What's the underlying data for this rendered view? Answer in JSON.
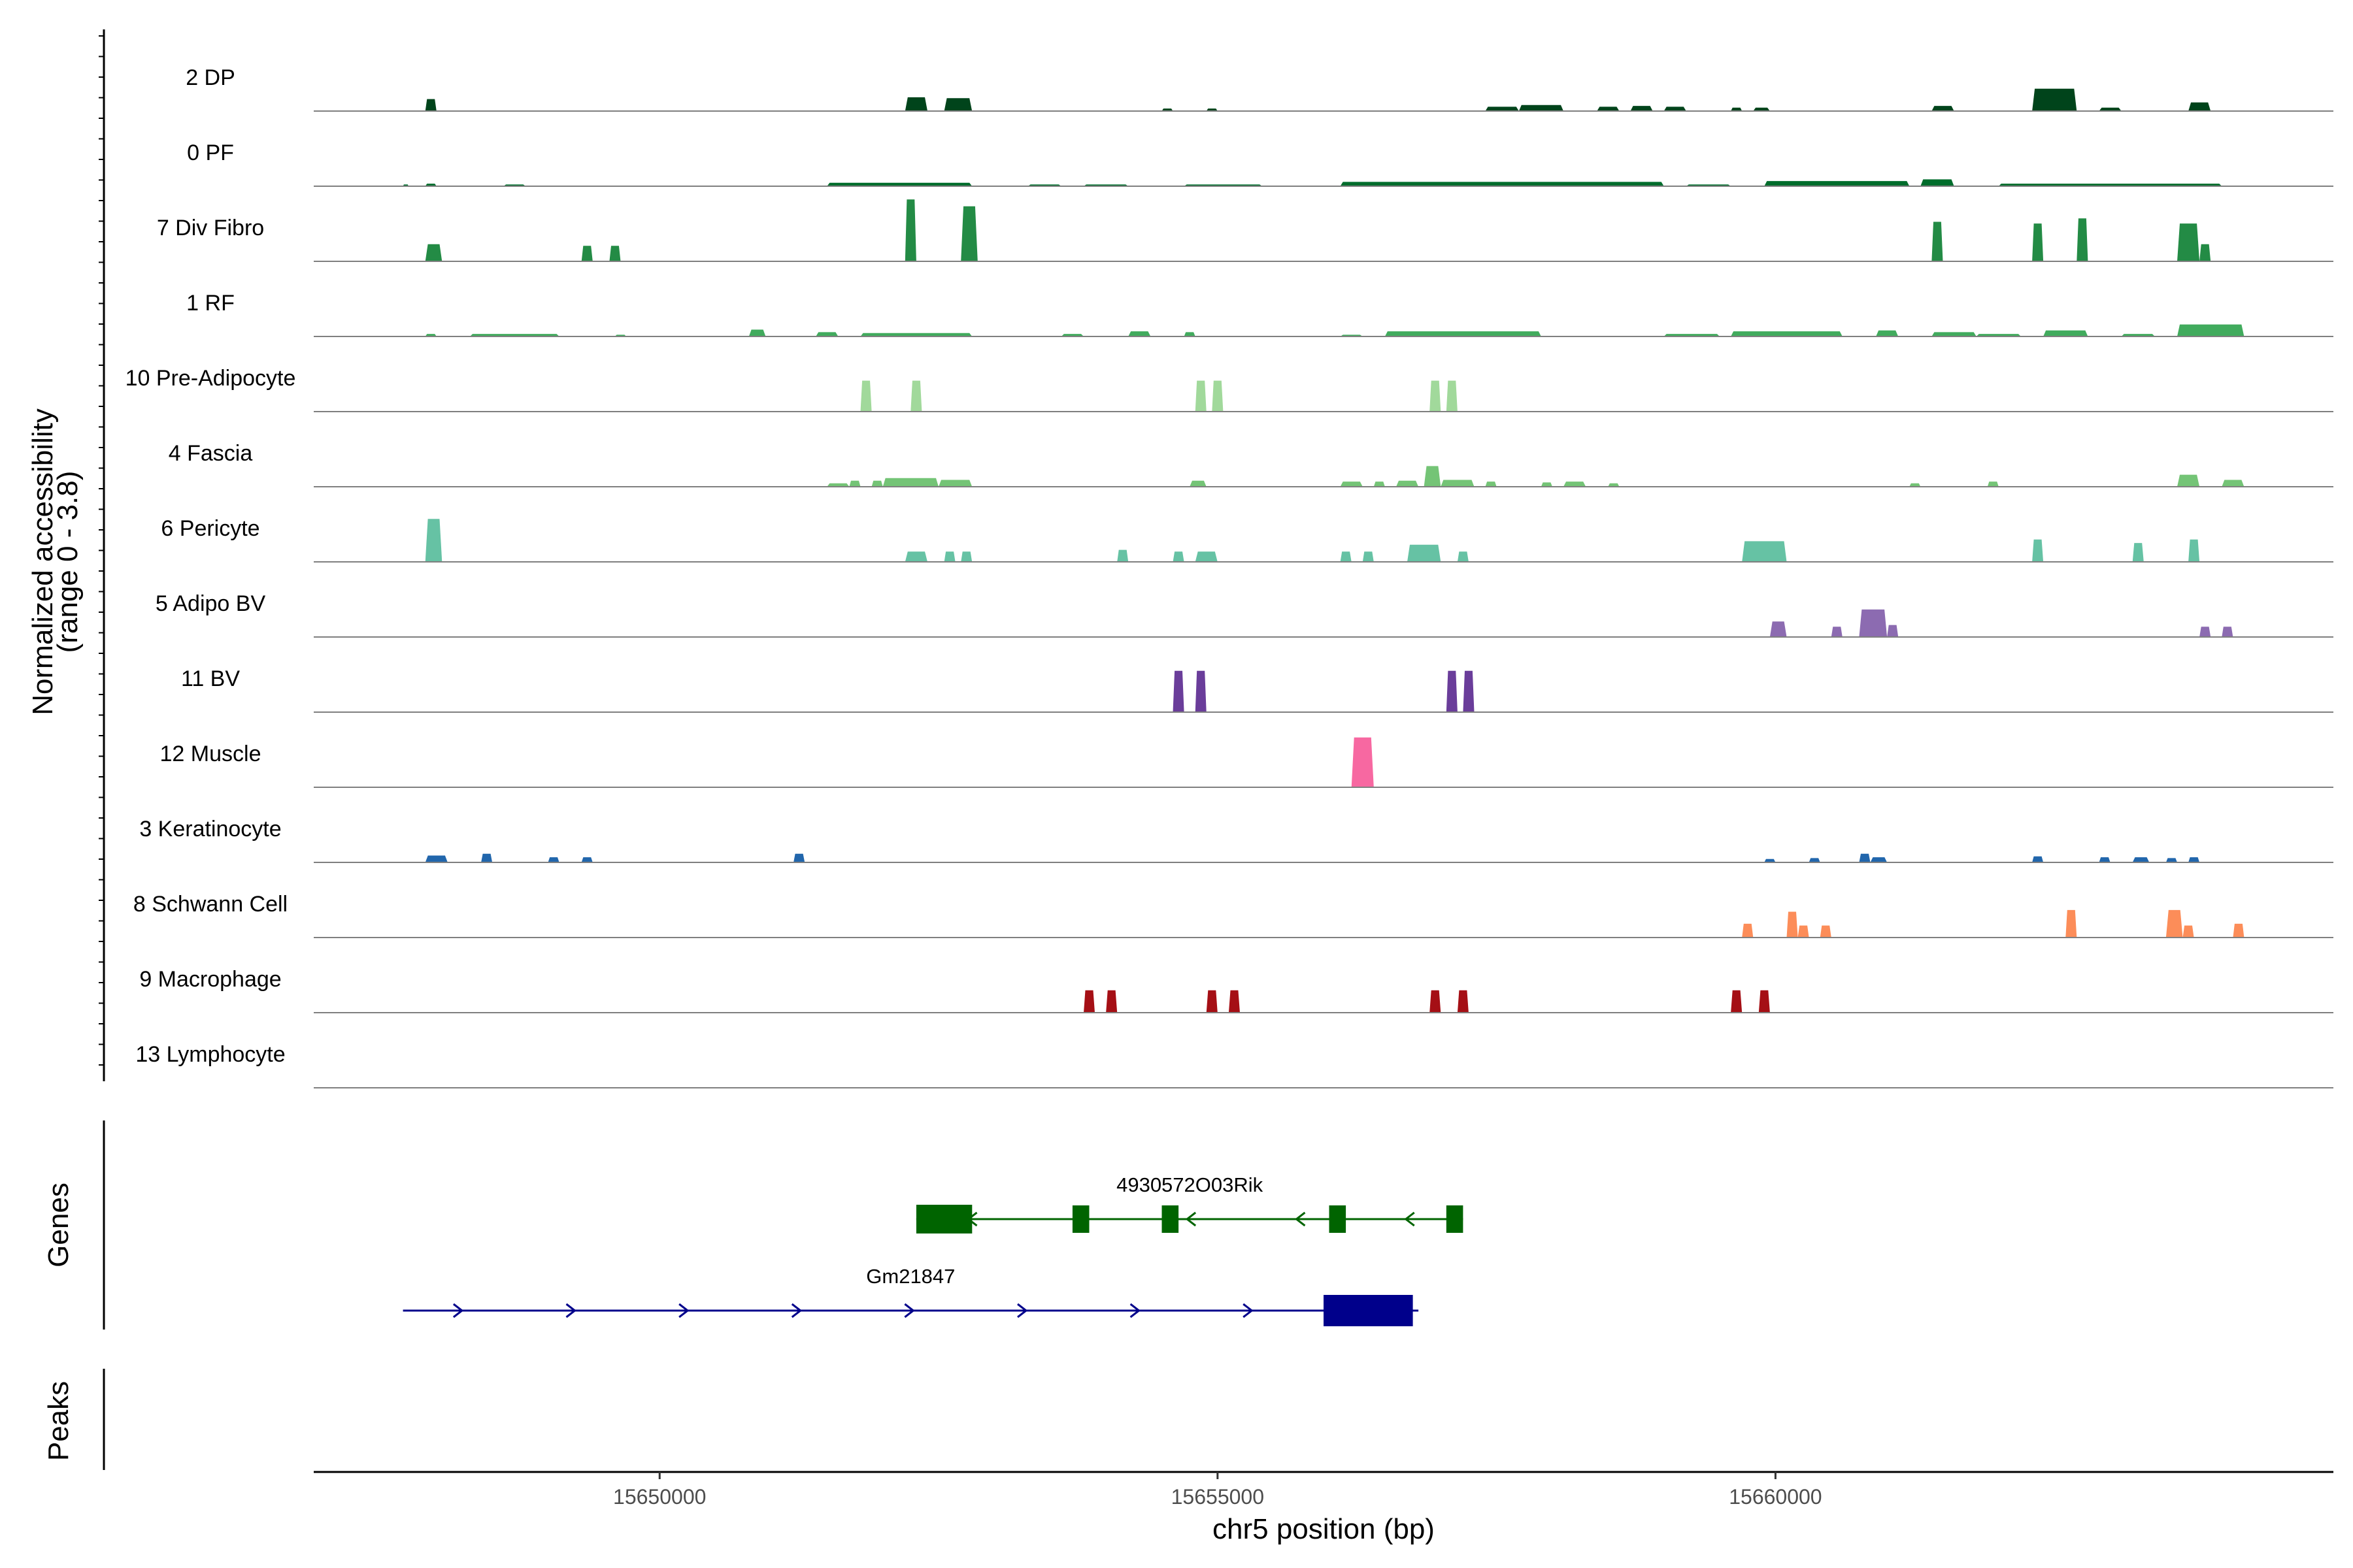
{
  "chart_data": {
    "type": "area",
    "title": "",
    "xlabel": "chr5 position (bp)",
    "ylabel": "Normalized accessibility (range 0 - 3.8)",
    "xlim": [
      15646900,
      15665000
    ],
    "ylim": [
      0,
      3.8
    ],
    "x_ticks": [
      15650000,
      15655000,
      15660000
    ],
    "x_tick_labels": [
      "15650000",
      "15655000",
      "15660000"
    ],
    "panel_labels": {
      "genes": "Genes",
      "peaks": "Peaks"
    },
    "series": [
      {
        "name": "2 DP",
        "color": "#00441b",
        "peaks": [
          [
            15647900,
            15648000,
            0.7
          ],
          [
            15652200,
            15652400,
            0.8
          ],
          [
            15652550,
            15652800,
            0.75
          ],
          [
            15654500,
            15654600,
            0.15
          ],
          [
            15654900,
            15655000,
            0.15
          ],
          [
            15657400,
            15657700,
            0.25
          ],
          [
            15657700,
            15658100,
            0.35
          ],
          [
            15658400,
            15658600,
            0.25
          ],
          [
            15658700,
            15658900,
            0.3
          ],
          [
            15659000,
            15659200,
            0.25
          ],
          [
            15659600,
            15659700,
            0.2
          ],
          [
            15659800,
            15659950,
            0.2
          ],
          [
            15661400,
            15661600,
            0.3
          ],
          [
            15662300,
            15662700,
            1.3
          ],
          [
            15662900,
            15663100,
            0.2
          ],
          [
            15663700,
            15663900,
            0.5
          ]
        ]
      },
      {
        "name": "0 PF",
        "color": "#006d2c",
        "peaks": [
          [
            15647700,
            15647750,
            0.1
          ],
          [
            15647900,
            15648000,
            0.15
          ],
          [
            15648600,
            15648800,
            0.1
          ],
          [
            15651500,
            15652800,
            0.2
          ],
          [
            15653300,
            15653600,
            0.1
          ],
          [
            15653800,
            15654200,
            0.1
          ],
          [
            15654700,
            15655400,
            0.1
          ],
          [
            15656100,
            15659000,
            0.25
          ],
          [
            15659200,
            15659600,
            0.1
          ],
          [
            15659900,
            15661200,
            0.3
          ],
          [
            15661300,
            15661600,
            0.4
          ],
          [
            15662000,
            15664000,
            0.15
          ]
        ]
      },
      {
        "name": "7 Div Fibro",
        "color": "#238b45",
        "peaks": [
          [
            15647900,
            15648050,
            1.0
          ],
          [
            15649300,
            15649400,
            0.9
          ],
          [
            15649550,
            15649650,
            0.9
          ],
          [
            15652200,
            15652300,
            3.6
          ],
          [
            15652700,
            15652850,
            3.2
          ],
          [
            15661400,
            15661500,
            2.3
          ],
          [
            15662300,
            15662400,
            2.2
          ],
          [
            15662700,
            15662800,
            2.5
          ],
          [
            15663600,
            15663800,
            2.2
          ],
          [
            15663800,
            15663900,
            1.0
          ]
        ]
      },
      {
        "name": "1 RF",
        "color": "#41ab5d",
        "peaks": [
          [
            15647900,
            15648000,
            0.15
          ],
          [
            15648300,
            15649100,
            0.15
          ],
          [
            15649600,
            15649700,
            0.1
          ],
          [
            15650800,
            15650950,
            0.4
          ],
          [
            15651400,
            15651600,
            0.25
          ],
          [
            15651800,
            15652800,
            0.2
          ],
          [
            15653600,
            15653800,
            0.15
          ],
          [
            15654200,
            15654400,
            0.3
          ],
          [
            15654700,
            15654800,
            0.25
          ],
          [
            15656100,
            15656300,
            0.1
          ],
          [
            15656500,
            15657900,
            0.3
          ],
          [
            15659000,
            15659500,
            0.15
          ],
          [
            15659600,
            15660600,
            0.3
          ],
          [
            15660900,
            15661100,
            0.35
          ],
          [
            15661400,
            15661800,
            0.25
          ],
          [
            15661800,
            15662200,
            0.15
          ],
          [
            15662400,
            15662800,
            0.35
          ],
          [
            15663100,
            15663400,
            0.15
          ],
          [
            15663600,
            15664200,
            0.7
          ]
        ]
      },
      {
        "name": "10 Pre-Adipocyte",
        "color": "#a1d99b",
        "peaks": [
          [
            15651800,
            15651900,
            1.8
          ],
          [
            15652250,
            15652350,
            1.8
          ],
          [
            15654800,
            15654900,
            1.8
          ],
          [
            15654950,
            15655050,
            1.8
          ],
          [
            15656900,
            15657000,
            1.8
          ],
          [
            15657050,
            15657150,
            1.8
          ]
        ]
      },
      {
        "name": "4 Fascia",
        "color": "#74c476",
        "peaks": [
          [
            15651500,
            15651700,
            0.2
          ],
          [
            15651700,
            15651800,
            0.35
          ],
          [
            15651900,
            15652000,
            0.35
          ],
          [
            15652000,
            15652500,
            0.5
          ],
          [
            15652500,
            15652800,
            0.4
          ],
          [
            15654750,
            15654900,
            0.35
          ],
          [
            15656100,
            15656300,
            0.3
          ],
          [
            15656400,
            15656500,
            0.3
          ],
          [
            15656600,
            15656800,
            0.35
          ],
          [
            15656850,
            15657000,
            1.2
          ],
          [
            15657000,
            15657300,
            0.4
          ],
          [
            15657400,
            15657500,
            0.3
          ],
          [
            15657900,
            15658000,
            0.25
          ],
          [
            15658100,
            15658300,
            0.3
          ],
          [
            15658500,
            15658600,
            0.2
          ],
          [
            15661200,
            15661300,
            0.2
          ],
          [
            15661900,
            15662000,
            0.3
          ],
          [
            15663600,
            15663800,
            0.7
          ],
          [
            15664000,
            15664200,
            0.4
          ]
        ]
      },
      {
        "name": "6 Pericyte",
        "color": "#66c2a4",
        "peaks": [
          [
            15647900,
            15648050,
            2.5
          ],
          [
            15652200,
            15652400,
            0.6
          ],
          [
            15652550,
            15652650,
            0.6
          ],
          [
            15652700,
            15652800,
            0.6
          ],
          [
            15654100,
            15654200,
            0.7
          ],
          [
            15654600,
            15654700,
            0.6
          ],
          [
            15654800,
            15655000,
            0.6
          ],
          [
            15656100,
            15656200,
            0.6
          ],
          [
            15656300,
            15656400,
            0.6
          ],
          [
            15656700,
            15657000,
            1.0
          ],
          [
            15657150,
            15657250,
            0.6
          ],
          [
            15659700,
            15660100,
            1.2
          ],
          [
            15662300,
            15662400,
            1.3
          ],
          [
            15663200,
            15663300,
            1.1
          ],
          [
            15663700,
            15663800,
            1.3
          ]
        ]
      },
      {
        "name": "5 Adipo BV",
        "color": "#8c6bb1",
        "peaks": [
          [
            15659950,
            15660100,
            0.9
          ],
          [
            15660500,
            15660600,
            0.6
          ],
          [
            15660750,
            15661000,
            1.6
          ],
          [
            15661000,
            15661100,
            0.7
          ],
          [
            15663800,
            15663900,
            0.6
          ],
          [
            15664000,
            15664100,
            0.6
          ]
        ]
      },
      {
        "name": "11 BV",
        "color": "#6a3d9a",
        "peaks": [
          [
            15654600,
            15654700,
            2.4
          ],
          [
            15654800,
            15654900,
            2.4
          ],
          [
            15657050,
            15657150,
            2.4
          ],
          [
            15657200,
            15657300,
            2.4
          ]
        ]
      },
      {
        "name": "12 Muscle",
        "color": "#f768a1",
        "peaks": [
          [
            15656200,
            15656400,
            2.9
          ]
        ]
      },
      {
        "name": "3 Keratinocyte",
        "color": "#2166ac",
        "peaks": [
          [
            15647900,
            15648100,
            0.4
          ],
          [
            15648400,
            15648500,
            0.5
          ],
          [
            15649000,
            15649100,
            0.3
          ],
          [
            15649300,
            15649400,
            0.3
          ],
          [
            15651200,
            15651300,
            0.5
          ],
          [
            15659900,
            15660000,
            0.2
          ],
          [
            15660300,
            15660400,
            0.25
          ],
          [
            15660750,
            15660850,
            0.5
          ],
          [
            15660850,
            15661000,
            0.3
          ],
          [
            15662300,
            15662400,
            0.35
          ],
          [
            15662900,
            15663000,
            0.3
          ],
          [
            15663200,
            15663350,
            0.3
          ],
          [
            15663500,
            15663600,
            0.25
          ],
          [
            15663700,
            15663800,
            0.3
          ]
        ]
      },
      {
        "name": "8 Schwann Cell",
        "color": "#fc8d59",
        "peaks": [
          [
            15659700,
            15659800,
            0.8
          ],
          [
            15660100,
            15660200,
            1.5
          ],
          [
            15660200,
            15660300,
            0.7
          ],
          [
            15660400,
            15660500,
            0.7
          ],
          [
            15662600,
            15662700,
            1.6
          ],
          [
            15663500,
            15663650,
            1.6
          ],
          [
            15663650,
            15663750,
            0.7
          ],
          [
            15664100,
            15664200,
            0.8
          ]
        ]
      },
      {
        "name": "9 Macrophage",
        "color": "#a50f15",
        "peaks": [
          [
            15653800,
            15653900,
            1.3
          ],
          [
            15654000,
            15654100,
            1.3
          ],
          [
            15654900,
            15655000,
            1.3
          ],
          [
            15655100,
            15655200,
            1.3
          ],
          [
            15656900,
            15657000,
            1.3
          ],
          [
            15657150,
            15657250,
            1.3
          ],
          [
            15659600,
            15659700,
            1.3
          ],
          [
            15659850,
            15659950,
            1.3
          ]
        ]
      },
      {
        "name": "13 Lymphocyte",
        "color": "#1b7837",
        "peaks": []
      }
    ],
    "genes": [
      {
        "name": "4930572O03Rik",
        "strand": "-",
        "color": "#006400",
        "start": 15652300,
        "end": 15657200,
        "exons": [
          [
            15652300,
            15652800
          ],
          [
            15653700,
            15653850
          ],
          [
            15654500,
            15654650
          ],
          [
            15656000,
            15656150
          ],
          [
            15657050,
            15657200
          ]
        ]
      },
      {
        "name": "Gm21847",
        "strand": "+",
        "color": "#00008b",
        "start": 15647700,
        "end": 15656800,
        "exons": [
          [
            15655950,
            15656750
          ]
        ]
      }
    ],
    "peaks_track": []
  }
}
